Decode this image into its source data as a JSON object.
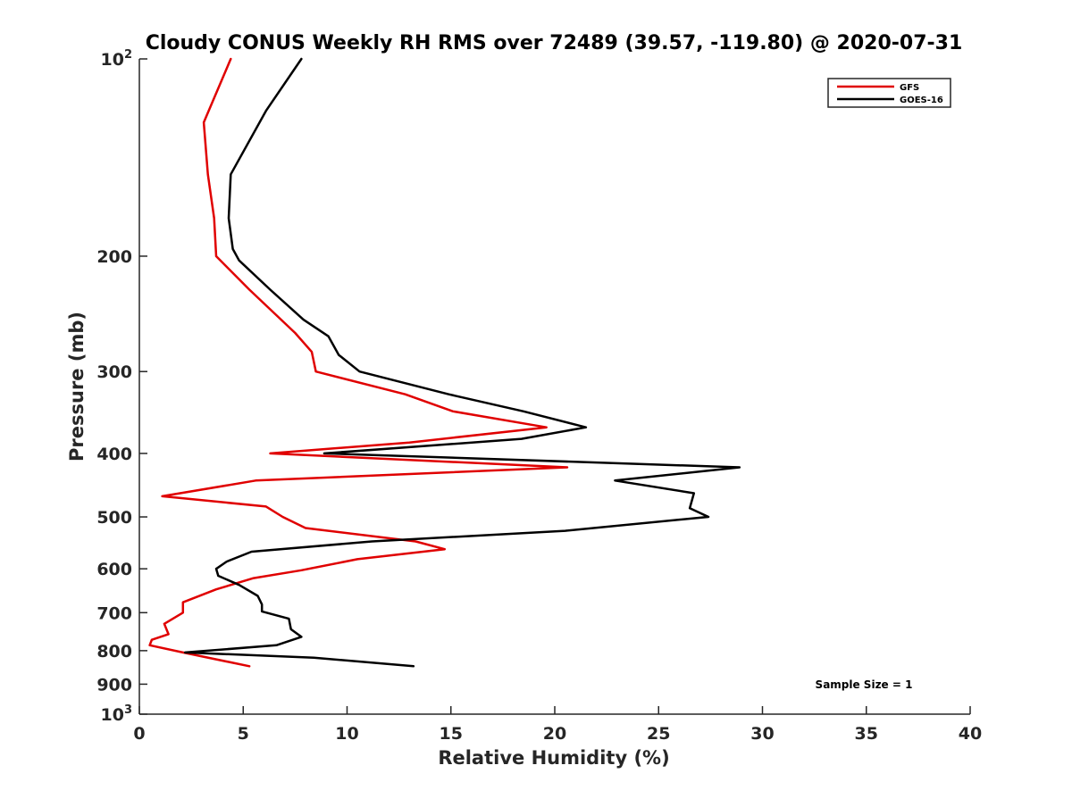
{
  "chart_data": {
    "type": "line",
    "title": "Cloudy CONUS Weekly RH RMS over 72489 (39.57, -119.80) @ 2020-07-31",
    "xlabel": "Relative Humidity (%)",
    "ylabel": "Pressure (mb)",
    "xlim": [
      0,
      40
    ],
    "ylim": [
      100,
      1000
    ],
    "yscale": "log",
    "y_reversed": true,
    "grid": false,
    "legend_position": "top-right",
    "x_ticks": [
      0,
      5,
      10,
      15,
      20,
      25,
      30,
      35,
      40
    ],
    "y_ticks": [
      {
        "value": 100,
        "base": "10",
        "exp": "2"
      },
      {
        "value": 200,
        "label": "200"
      },
      {
        "value": 300,
        "label": "300"
      },
      {
        "value": 400,
        "label": "400"
      },
      {
        "value": 500,
        "label": "500"
      },
      {
        "value": 600,
        "label": "600"
      },
      {
        "value": 700,
        "label": "700"
      },
      {
        "value": 800,
        "label": "800"
      },
      {
        "value": 900,
        "label": "900"
      },
      {
        "value": 1000,
        "base": "10",
        "exp": "3"
      }
    ],
    "series": [
      {
        "name": "GFS",
        "color": "#e00000",
        "points": [
          [
            4.4,
            100
          ],
          [
            3.1,
            125
          ],
          [
            3.3,
            150
          ],
          [
            3.6,
            175
          ],
          [
            3.7,
            200
          ],
          [
            5.3,
            225
          ],
          [
            7.5,
            262
          ],
          [
            8.3,
            280
          ],
          [
            8.5,
            300
          ],
          [
            12.8,
            325
          ],
          [
            15.1,
            345
          ],
          [
            19.6,
            365
          ],
          [
            13.0,
            385
          ],
          [
            6.3,
            400
          ],
          [
            20.6,
            420
          ],
          [
            5.6,
            440
          ],
          [
            1.1,
            465
          ],
          [
            6.1,
            482
          ],
          [
            6.9,
            500
          ],
          [
            8.0,
            520
          ],
          [
            13.3,
            545
          ],
          [
            14.7,
            560
          ],
          [
            10.5,
            580
          ],
          [
            7.8,
            603
          ],
          [
            5.5,
            620
          ],
          [
            3.7,
            645
          ],
          [
            2.1,
            675
          ],
          [
            2.1,
            700
          ],
          [
            1.2,
            728
          ],
          [
            1.4,
            755
          ],
          [
            0.6,
            770
          ],
          [
            0.5,
            785
          ],
          [
            2.1,
            805
          ],
          [
            5.3,
            845
          ]
        ]
      },
      {
        "name": "GOES-16",
        "color": "#000000",
        "points": [
          [
            7.8,
            100
          ],
          [
            6.1,
            120
          ],
          [
            4.4,
            150
          ],
          [
            4.3,
            175
          ],
          [
            4.5,
            195
          ],
          [
            4.8,
            203
          ],
          [
            6.3,
            225
          ],
          [
            7.9,
            250
          ],
          [
            9.1,
            265
          ],
          [
            9.6,
            283
          ],
          [
            10.6,
            300
          ],
          [
            14.9,
            325
          ],
          [
            18.5,
            345
          ],
          [
            21.5,
            365
          ],
          [
            18.4,
            380
          ],
          [
            8.9,
            400
          ],
          [
            28.9,
            420
          ],
          [
            22.9,
            440
          ],
          [
            26.7,
            460
          ],
          [
            26.5,
            485
          ],
          [
            27.4,
            500
          ],
          [
            20.5,
            525
          ],
          [
            11.2,
            545
          ],
          [
            5.4,
            565
          ],
          [
            4.2,
            585
          ],
          [
            3.7,
            600
          ],
          [
            3.8,
            615
          ],
          [
            4.8,
            635
          ],
          [
            5.7,
            660
          ],
          [
            5.9,
            680
          ],
          [
            5.9,
            697
          ],
          [
            7.2,
            715
          ],
          [
            7.3,
            742
          ],
          [
            7.8,
            762
          ],
          [
            6.6,
            785
          ],
          [
            2.2,
            805
          ],
          [
            8.4,
            820
          ],
          [
            13.2,
            845
          ]
        ]
      }
    ],
    "annotations": [
      "Sample Size = 1"
    ]
  }
}
